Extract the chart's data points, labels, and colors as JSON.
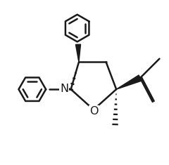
{
  "bg_color": "#ffffff",
  "line_color": "#1a1a1a",
  "line_width": 1.8,
  "fig_width": 2.4,
  "fig_height": 2.35,
  "dpi": 100,
  "xlim": [
    -2.8,
    4.2
  ],
  "ylim": [
    -3.2,
    4.0
  ]
}
